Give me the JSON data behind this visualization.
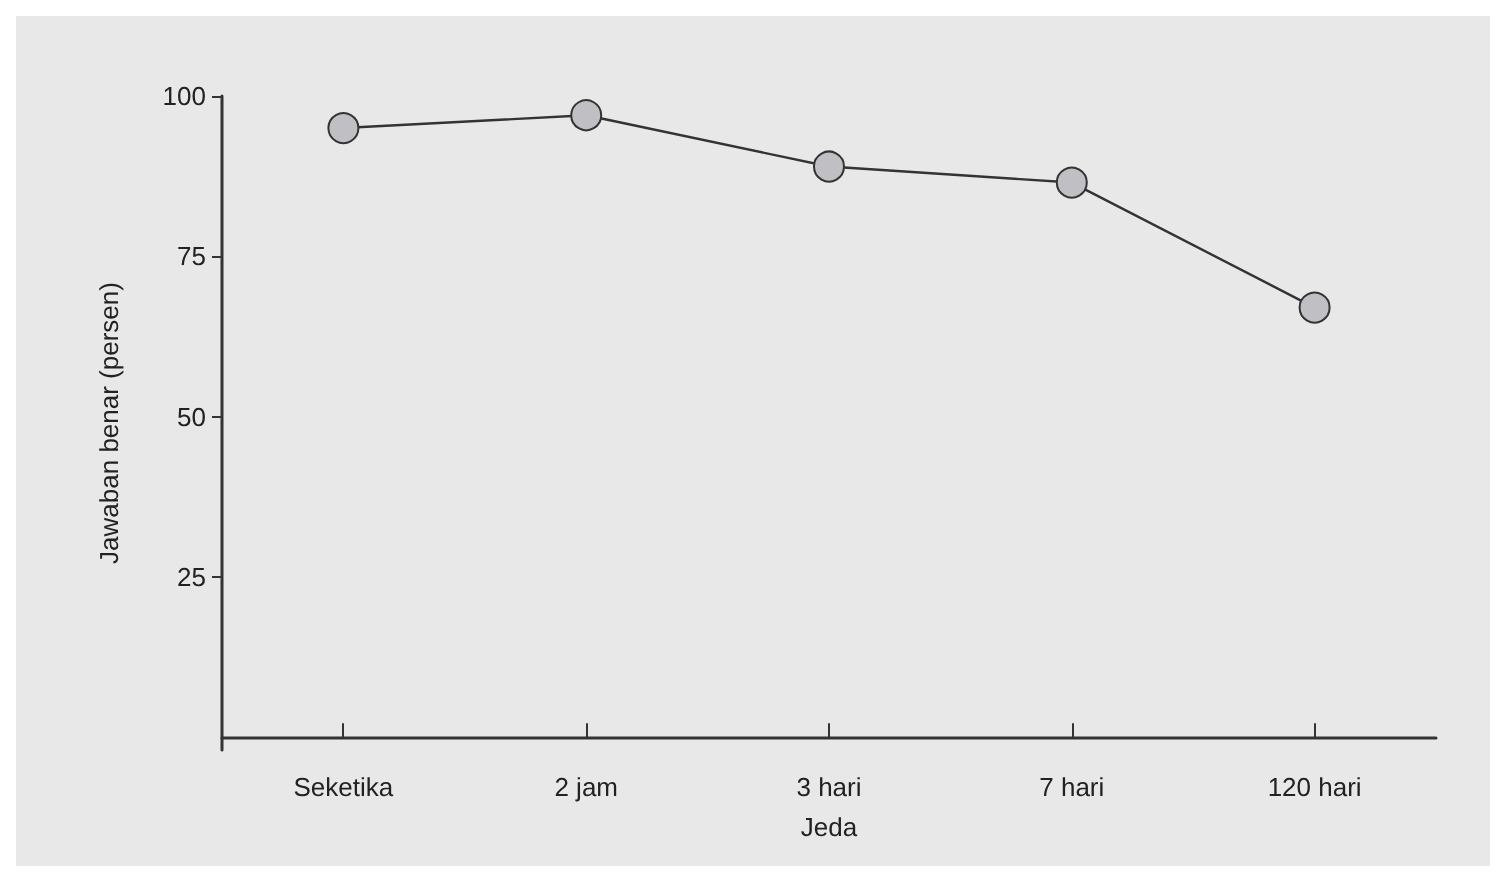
{
  "chart_data": {
    "type": "line",
    "xlabel": "Jeda",
    "ylabel": "Jawaban benar (persen)",
    "categories": [
      "Seketika",
      "2 jam",
      "3 hari",
      "7 hari",
      "120 hari"
    ],
    "series": [
      {
        "color": "#c0c0c4",
        "values": [
          95,
          97,
          89,
          86.5,
          67
        ]
      }
    ],
    "ylim": [
      -2,
      100
    ],
    "yticks": [
      25,
      50,
      75,
      100
    ],
    "grid": false,
    "marker": "circle",
    "line_style": "solid"
  }
}
